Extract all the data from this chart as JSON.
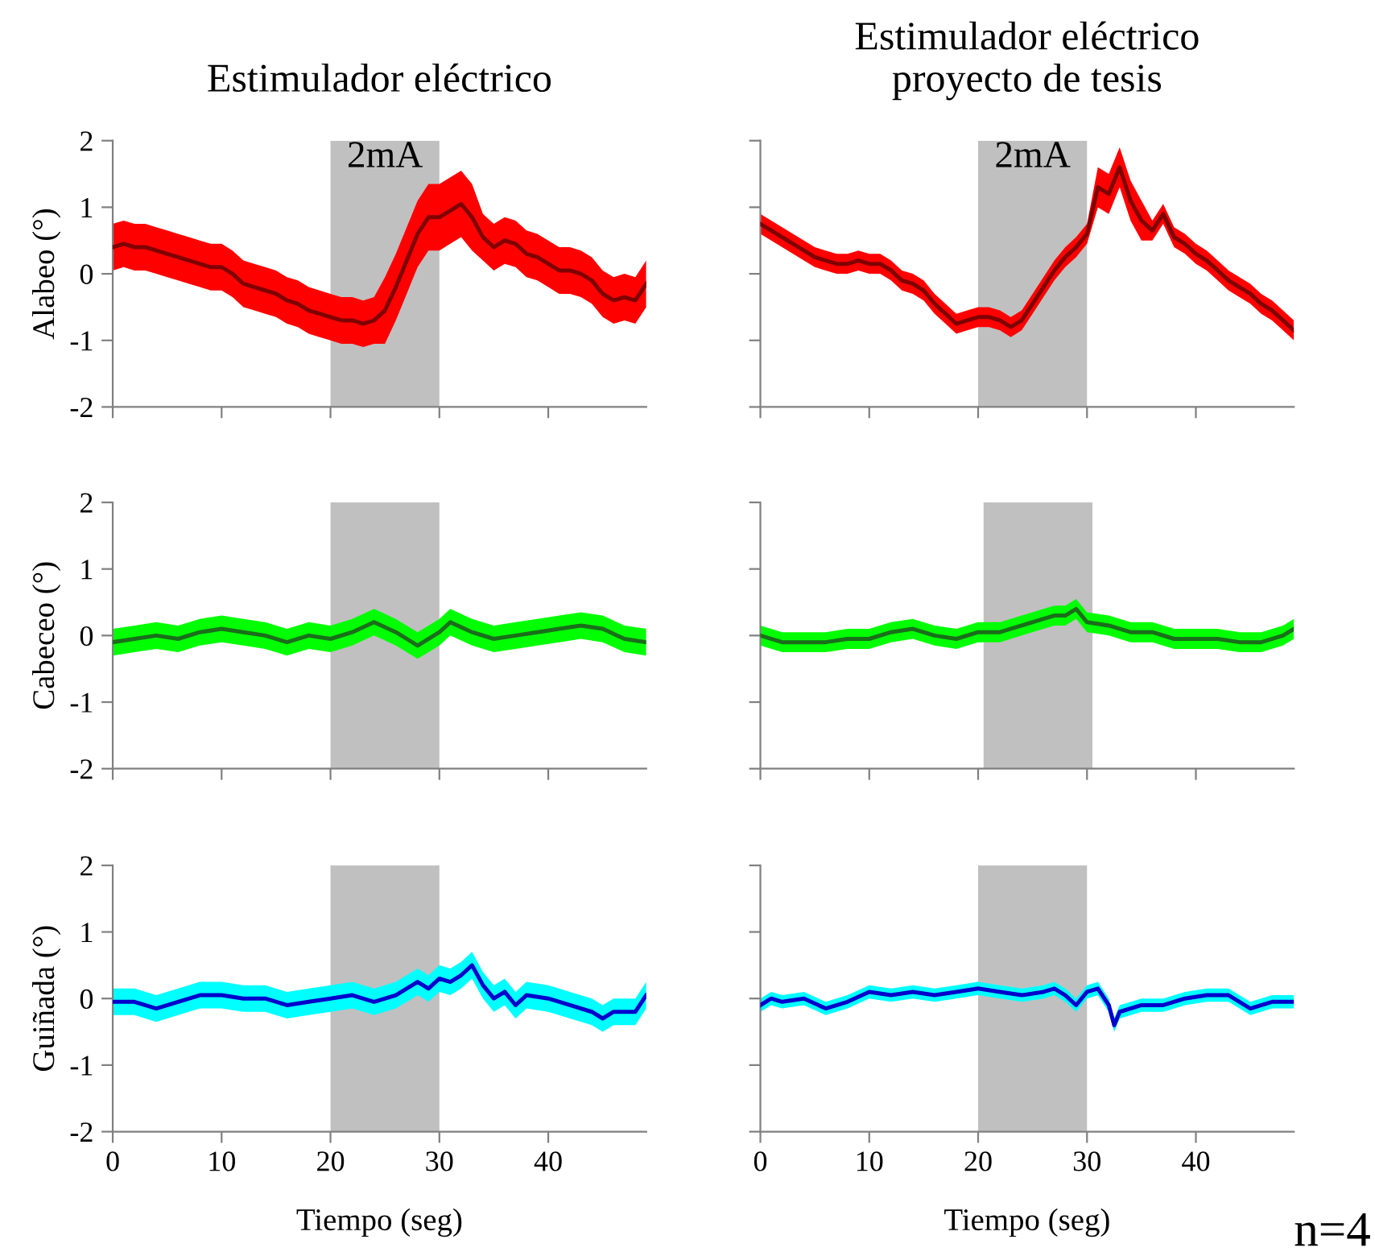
{
  "chart_data": [
    {
      "type": "line",
      "title": "Estimulador eléctrico",
      "ylabel": "Alabeo (°)",
      "xlim": [
        0,
        49
      ],
      "xticks": [
        0,
        10,
        20,
        30,
        40
      ],
      "ylim": [
        -2,
        2
      ],
      "yticks": [
        -2,
        -1,
        0,
        1,
        2
      ],
      "tick_labels": "y",
      "bands": [
        {
          "axis": "x",
          "from": 20,
          "to": 30,
          "label": "2mA",
          "color": "#c0c0c0"
        }
      ],
      "series": [
        {
          "color": "#800000",
          "x": [
            0,
            1,
            2,
            3,
            4,
            5,
            6,
            7,
            8,
            9,
            10,
            11,
            12,
            13,
            14,
            15,
            16,
            17,
            18,
            19,
            20,
            21,
            22,
            23,
            24,
            25,
            26,
            27,
            28,
            29,
            30,
            31,
            32,
            33,
            34,
            35,
            36,
            37,
            38,
            39,
            40,
            41,
            42,
            43,
            44,
            45,
            46,
            47,
            48,
            49
          ],
          "values": [
            0.4,
            0.45,
            0.4,
            0.4,
            0.35,
            0.3,
            0.25,
            0.2,
            0.15,
            0.1,
            0.1,
            0.0,
            -0.15,
            -0.2,
            -0.25,
            -0.3,
            -0.4,
            -0.45,
            -0.55,
            -0.6,
            -0.65,
            -0.7,
            -0.7,
            -0.75,
            -0.7,
            -0.55,
            -0.2,
            0.2,
            0.6,
            0.85,
            0.85,
            0.95,
            1.05,
            0.85,
            0.55,
            0.4,
            0.5,
            0.45,
            0.3,
            0.25,
            0.15,
            0.05,
            0.05,
            0.0,
            -0.1,
            -0.3,
            -0.4,
            -0.35,
            -0.4,
            -0.15
          ],
          "lower": [
            0.05,
            0.1,
            0.05,
            0.05,
            0,
            -0.05,
            -0.1,
            -0.15,
            -0.2,
            -0.25,
            -0.25,
            -0.35,
            -0.5,
            -0.55,
            -0.6,
            -0.65,
            -0.75,
            -0.8,
            -0.9,
            -0.95,
            -1.0,
            -1.05,
            -1.05,
            -1.1,
            -1.05,
            -1.05,
            -0.7,
            -0.3,
            0.1,
            0.35,
            0.35,
            0.45,
            0.55,
            0.35,
            0.2,
            0.05,
            0.15,
            0.1,
            -0.05,
            -0.1,
            -0.2,
            -0.3,
            -0.3,
            -0.35,
            -0.45,
            -0.65,
            -0.75,
            -0.7,
            -0.75,
            -0.5
          ],
          "upper": [
            0.75,
            0.8,
            0.75,
            0.75,
            0.7,
            0.65,
            0.6,
            0.55,
            0.5,
            0.45,
            0.45,
            0.35,
            0.2,
            0.15,
            0.1,
            0.05,
            -0.05,
            -0.1,
            -0.2,
            -0.25,
            -0.3,
            -0.35,
            -0.35,
            -0.4,
            -0.35,
            -0.05,
            0.3,
            0.7,
            1.1,
            1.35,
            1.35,
            1.45,
            1.55,
            1.35,
            0.9,
            0.75,
            0.85,
            0.8,
            0.65,
            0.6,
            0.5,
            0.4,
            0.4,
            0.35,
            0.25,
            0.05,
            -0.05,
            0.0,
            -0.05,
            0.2
          ]
        }
      ]
    },
    {
      "type": "line",
      "title": "Estimulador eléctrico\nproyecto de tesis",
      "xlim": [
        0,
        49
      ],
      "xticks": [
        0,
        10,
        20,
        30,
        40
      ],
      "ylim": [
        -2,
        2
      ],
      "yticks": [
        -2,
        -1,
        0,
        1,
        2
      ],
      "tick_labels": false,
      "bands": [
        {
          "axis": "x",
          "from": 20,
          "to": 30,
          "label": "2mA",
          "color": "#c0c0c0"
        }
      ],
      "series": [
        {
          "color": "#800000",
          "x": [
            0,
            1,
            2,
            3,
            4,
            5,
            6,
            7,
            8,
            9,
            10,
            11,
            12,
            13,
            14,
            15,
            16,
            17,
            18,
            19,
            20,
            21,
            22,
            23,
            24,
            25,
            26,
            27,
            28,
            29,
            30,
            31,
            32,
            33,
            34,
            35,
            36,
            37,
            38,
            39,
            40,
            41,
            42,
            43,
            44,
            45,
            46,
            47,
            48,
            49
          ],
          "values": [
            0.75,
            0.65,
            0.55,
            0.45,
            0.35,
            0.25,
            0.2,
            0.15,
            0.15,
            0.2,
            0.15,
            0.15,
            0.05,
            -0.1,
            -0.15,
            -0.25,
            -0.45,
            -0.6,
            -0.75,
            -0.7,
            -0.65,
            -0.65,
            -0.7,
            -0.8,
            -0.7,
            -0.45,
            -0.2,
            0.05,
            0.25,
            0.4,
            0.6,
            1.3,
            1.2,
            1.6,
            1.1,
            0.8,
            0.65,
            0.9,
            0.55,
            0.45,
            0.3,
            0.2,
            0.05,
            -0.1,
            -0.2,
            -0.3,
            -0.45,
            -0.55,
            -0.7,
            -0.85
          ],
          "lower": [
            0.6,
            0.5,
            0.4,
            0.3,
            0.2,
            0.1,
            0.05,
            0,
            0,
            0.05,
            0,
            0,
            -0.1,
            -0.25,
            -0.3,
            -0.4,
            -0.6,
            -0.75,
            -0.9,
            -0.85,
            -0.8,
            -0.8,
            -0.85,
            -0.95,
            -0.85,
            -0.6,
            -0.35,
            -0.1,
            0.1,
            0.25,
            0.45,
            1.0,
            0.9,
            1.3,
            0.8,
            0.5,
            0.5,
            0.75,
            0.4,
            0.3,
            0.15,
            0.05,
            -0.1,
            -0.25,
            -0.35,
            -0.45,
            -0.6,
            -0.7,
            -0.85,
            -1.0
          ],
          "upper": [
            0.9,
            0.8,
            0.7,
            0.6,
            0.5,
            0.4,
            0.35,
            0.3,
            0.3,
            0.35,
            0.3,
            0.3,
            0.2,
            0.05,
            0,
            -0.1,
            -0.3,
            -0.45,
            -0.6,
            -0.55,
            -0.5,
            -0.5,
            -0.55,
            -0.65,
            -0.55,
            -0.3,
            -0.05,
            0.2,
            0.4,
            0.55,
            0.75,
            1.6,
            1.5,
            1.9,
            1.4,
            1.1,
            0.8,
            1.05,
            0.7,
            0.6,
            0.45,
            0.35,
            0.2,
            0.05,
            -0.05,
            -0.15,
            -0.3,
            -0.4,
            -0.55,
            -0.7
          ]
        }
      ]
    },
    {
      "type": "line",
      "ylabel": "Cabeceo (°)",
      "xlim": [
        0,
        49
      ],
      "xticks": [
        0,
        10,
        20,
        30,
        40
      ],
      "ylim": [
        -2,
        2
      ],
      "yticks": [
        -2,
        -1,
        0,
        1,
        2
      ],
      "tick_labels": "y",
      "bands": [
        {
          "axis": "x",
          "from": 20,
          "to": 30,
          "color": "#c0c0c0"
        }
      ],
      "series": [
        {
          "color": "#1a6e1a",
          "x": [
            0,
            2,
            4,
            6,
            8,
            10,
            12,
            14,
            16,
            18,
            20,
            22,
            24,
            26,
            28,
            30,
            31,
            33,
            35,
            37,
            39,
            41,
            43,
            45,
            47,
            49
          ],
          "values": [
            -0.1,
            -0.05,
            0.0,
            -0.05,
            0.05,
            0.1,
            0.05,
            0.0,
            -0.1,
            0.0,
            -0.05,
            0.05,
            0.2,
            0.05,
            -0.15,
            0.05,
            0.2,
            0.05,
            -0.05,
            0.0,
            0.05,
            0.1,
            0.15,
            0.1,
            -0.05,
            -0.1
          ],
          "lower": [
            -0.3,
            -0.25,
            -0.2,
            -0.25,
            -0.15,
            -0.1,
            -0.15,
            -0.2,
            -0.3,
            -0.2,
            -0.25,
            -0.15,
            0.0,
            -0.15,
            -0.35,
            -0.15,
            0.0,
            -0.15,
            -0.25,
            -0.2,
            -0.15,
            -0.1,
            -0.05,
            -0.1,
            -0.25,
            -0.3
          ],
          "upper": [
            0.1,
            0.15,
            0.2,
            0.15,
            0.25,
            0.3,
            0.25,
            0.2,
            0.1,
            0.2,
            0.15,
            0.25,
            0.4,
            0.25,
            0.05,
            0.25,
            0.4,
            0.25,
            0.15,
            0.2,
            0.25,
            0.3,
            0.35,
            0.3,
            0.15,
            0.1
          ]
        }
      ]
    },
    {
      "type": "line",
      "xlim": [
        0,
        49
      ],
      "xticks": [
        0,
        10,
        20,
        30,
        40
      ],
      "ylim": [
        -2,
        2
      ],
      "yticks": [
        -2,
        -1,
        0,
        1,
        2
      ],
      "tick_labels": false,
      "bands": [
        {
          "axis": "x",
          "from": 20.5,
          "to": 30.5,
          "color": "#c0c0c0"
        }
      ],
      "series": [
        {
          "color": "#1a6e1a",
          "x": [
            0,
            2,
            4,
            6,
            8,
            10,
            12,
            14,
            16,
            18,
            20,
            22,
            24,
            26,
            27,
            28,
            29,
            30,
            32,
            34,
            36,
            38,
            40,
            42,
            44,
            46,
            48,
            49
          ],
          "values": [
            0.0,
            -0.1,
            -0.1,
            -0.1,
            -0.05,
            -0.05,
            0.05,
            0.1,
            0.0,
            -0.05,
            0.05,
            0.05,
            0.15,
            0.25,
            0.3,
            0.3,
            0.4,
            0.2,
            0.15,
            0.05,
            0.05,
            -0.05,
            -0.05,
            -0.05,
            -0.1,
            -0.1,
            0.0,
            0.1
          ],
          "lower": [
            -0.15,
            -0.25,
            -0.25,
            -0.25,
            -0.2,
            -0.2,
            -0.1,
            -0.05,
            -0.15,
            -0.2,
            -0.1,
            -0.1,
            0.0,
            0.1,
            0.15,
            0.15,
            0.25,
            0.05,
            0.0,
            -0.1,
            -0.1,
            -0.2,
            -0.2,
            -0.2,
            -0.25,
            -0.25,
            -0.15,
            -0.05
          ],
          "upper": [
            0.15,
            0.05,
            0.05,
            0.05,
            0.1,
            0.1,
            0.2,
            0.25,
            0.15,
            0.1,
            0.2,
            0.2,
            0.3,
            0.4,
            0.45,
            0.45,
            0.55,
            0.35,
            0.3,
            0.2,
            0.2,
            0.1,
            0.1,
            0.1,
            0.05,
            0.05,
            0.15,
            0.25
          ]
        }
      ]
    },
    {
      "type": "line",
      "ylabel": "Guiñada (°)",
      "xlabel": "Tiempo (seg)",
      "xlim": [
        0,
        49
      ],
      "xticks": [
        0,
        10,
        20,
        30,
        40
      ],
      "ylim": [
        -2,
        2
      ],
      "yticks": [
        -2,
        -1,
        0,
        1,
        2
      ],
      "bands": [
        {
          "axis": "x",
          "from": 20,
          "to": 30,
          "color": "#c0c0c0"
        }
      ],
      "series": [
        {
          "color": "#0000cc",
          "x": [
            0,
            2,
            4,
            6,
            8,
            10,
            12,
            14,
            16,
            18,
            20,
            22,
            24,
            26,
            28,
            29,
            30,
            31,
            32,
            33,
            34,
            35,
            36,
            37,
            38,
            40,
            42,
            44,
            45,
            46,
            48,
            49
          ],
          "values": [
            -0.05,
            -0.05,
            -0.15,
            -0.05,
            0.05,
            0.05,
            0.0,
            0.0,
            -0.1,
            -0.05,
            0.0,
            0.05,
            -0.05,
            0.05,
            0.25,
            0.15,
            0.3,
            0.25,
            0.35,
            0.5,
            0.2,
            0.0,
            0.1,
            -0.1,
            0.05,
            0.0,
            -0.1,
            -0.2,
            -0.3,
            -0.2,
            -0.2,
            0.05
          ],
          "lower": [
            -0.25,
            -0.25,
            -0.35,
            -0.25,
            -0.15,
            -0.15,
            -0.2,
            -0.2,
            -0.3,
            -0.25,
            -0.2,
            -0.15,
            -0.25,
            -0.15,
            0.05,
            -0.05,
            0.1,
            0.05,
            0.15,
            0.3,
            0.0,
            -0.2,
            -0.1,
            -0.3,
            -0.15,
            -0.2,
            -0.3,
            -0.4,
            -0.5,
            -0.4,
            -0.4,
            -0.15
          ],
          "upper": [
            0.15,
            0.15,
            0.05,
            0.15,
            0.25,
            0.25,
            0.2,
            0.2,
            0.1,
            0.15,
            0.2,
            0.25,
            0.15,
            0.25,
            0.45,
            0.35,
            0.5,
            0.45,
            0.55,
            0.7,
            0.4,
            0.2,
            0.3,
            0.1,
            0.25,
            0.2,
            0.1,
            0.0,
            -0.1,
            0.0,
            0.0,
            0.25
          ]
        }
      ]
    },
    {
      "type": "line",
      "xlabel": "Tiempo (seg)",
      "xlim": [
        0,
        49
      ],
      "xticks": [
        0,
        10,
        20,
        30,
        40
      ],
      "ylim": [
        -2,
        2
      ],
      "yticks": [
        -2,
        -1,
        0,
        1,
        2
      ],
      "tick_labels": "x",
      "annotations": [
        "n=4"
      ],
      "bands": [
        {
          "axis": "x",
          "from": 20,
          "to": 30,
          "color": "#c0c0c0"
        }
      ],
      "series": [
        {
          "color": "#0000cc",
          "x": [
            0,
            1,
            2,
            4,
            6,
            8,
            10,
            12,
            14,
            16,
            18,
            20,
            22,
            24,
            26,
            27,
            28,
            29,
            30,
            31,
            32,
            32.5,
            33,
            35,
            37,
            39,
            41,
            43,
            45,
            47,
            49
          ],
          "values": [
            -0.1,
            0.0,
            -0.05,
            0.0,
            -0.15,
            -0.05,
            0.1,
            0.05,
            0.1,
            0.05,
            0.1,
            0.15,
            0.1,
            0.05,
            0.1,
            0.15,
            0.05,
            -0.1,
            0.1,
            0.15,
            -0.1,
            -0.4,
            -0.2,
            -0.1,
            -0.1,
            0.0,
            0.05,
            0.05,
            -0.15,
            -0.05,
            -0.05
          ],
          "lower": [
            -0.2,
            -0.1,
            -0.15,
            -0.1,
            -0.25,
            -0.15,
            0.0,
            -0.05,
            0.0,
            -0.05,
            0.0,
            0.05,
            0.0,
            -0.05,
            0.0,
            0.05,
            -0.05,
            -0.2,
            0.0,
            0.05,
            -0.2,
            -0.5,
            -0.3,
            -0.2,
            -0.2,
            -0.1,
            -0.05,
            -0.05,
            -0.25,
            -0.15,
            -0.15
          ],
          "upper": [
            0.0,
            0.1,
            0.05,
            0.1,
            -0.05,
            0.05,
            0.2,
            0.15,
            0.2,
            0.15,
            0.2,
            0.25,
            0.2,
            0.15,
            0.2,
            0.25,
            0.15,
            0.0,
            0.2,
            0.25,
            0.0,
            -0.3,
            -0.1,
            0.0,
            0.0,
            0.1,
            0.15,
            0.15,
            -0.05,
            0.05,
            0.05
          ]
        }
      ]
    }
  ]
}
